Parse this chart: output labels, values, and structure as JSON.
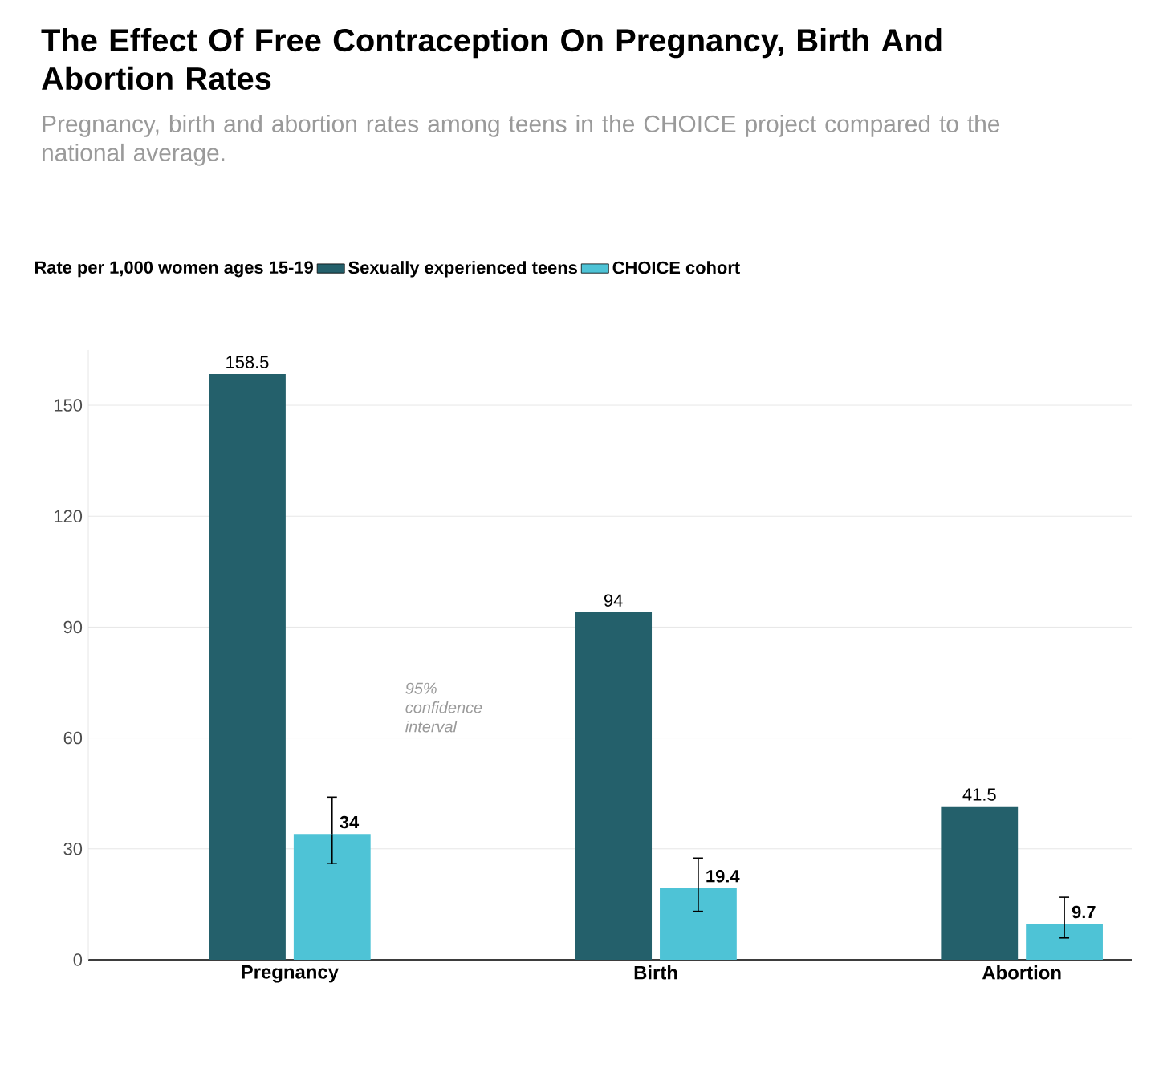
{
  "chart_data": {
    "type": "bar",
    "title": "The Effect Of Free Contraception On Pregnancy, Birth And Abortion Rates",
    "subtitle": "Pregnancy, birth and abortion rates among teens in the CHOICE project compared to the national average.",
    "legend_title": "Rate per 1,000 women ages 15-19",
    "categories": [
      "Pregnancy",
      "Birth",
      "Abortion"
    ],
    "series": [
      {
        "name": "Sexually experienced teens",
        "color": "#24606b",
        "values": [
          158.5,
          94,
          41.5
        ]
      },
      {
        "name": "CHOICE cohort",
        "color": "#4ec3d6",
        "values": [
          34,
          19.4,
          9.7
        ],
        "errors": [
          [
            26,
            44
          ],
          [
            13.1,
            27.5
          ],
          [
            5.9,
            16.9
          ]
        ]
      }
    ],
    "annotations": [
      "95% confidence interval"
    ],
    "ylim": [
      0,
      165
    ],
    "yticks": [
      0,
      30,
      60,
      90,
      120,
      150
    ],
    "grid": "y",
    "legend": "top left",
    "data_labels": true
  }
}
